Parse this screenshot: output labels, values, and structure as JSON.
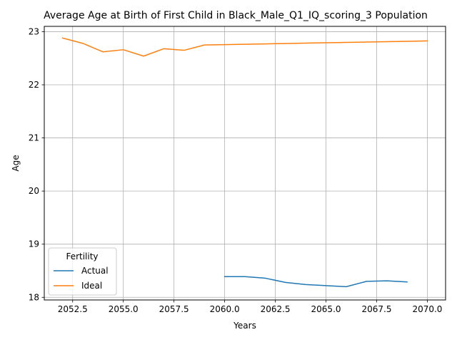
{
  "chart_data": {
    "type": "line",
    "title": "Average Age at Birth of First Child in Black_Male_Q1_IQ_scoring_3 Population",
    "xlabel": "Years",
    "ylabel": "Age",
    "xlim": [
      2051.1,
      2070.9
    ],
    "ylim": [
      17.95,
      23.1
    ],
    "xticks": [
      2052.5,
      2055.0,
      2057.5,
      2060.0,
      2062.5,
      2065.0,
      2067.5,
      2070.0
    ],
    "xtick_labels": [
      "2052.5",
      "2055.0",
      "2057.5",
      "2060.0",
      "2062.5",
      "2065.0",
      "2067.5",
      "2070.0"
    ],
    "yticks": [
      18,
      19,
      20,
      21,
      22,
      23
    ],
    "ytick_labels": [
      "18",
      "19",
      "20",
      "21",
      "22",
      "23"
    ],
    "grid": true,
    "legend": {
      "title": "Fertility",
      "placement": "lower-left"
    },
    "series": [
      {
        "name": "Actual",
        "color": "#1f77b4",
        "x": [
          2060,
          2061,
          2062,
          2063,
          2064,
          2065,
          2066,
          2067,
          2068,
          2069
        ],
        "y": [
          18.39,
          18.39,
          18.36,
          18.28,
          18.24,
          18.22,
          18.2,
          18.3,
          18.31,
          18.29
        ]
      },
      {
        "name": "Ideal",
        "color": "#ff7f0e",
        "x": [
          2052,
          2053,
          2054,
          2055,
          2056,
          2057,
          2058,
          2059,
          2060,
          2061,
          2062,
          2063,
          2064,
          2065,
          2066,
          2067,
          2068,
          2069,
          2070
        ],
        "y": [
          22.88,
          22.78,
          22.62,
          22.66,
          22.54,
          22.68,
          22.65,
          22.75,
          22.756,
          22.763,
          22.77,
          22.777,
          22.784,
          22.791,
          22.798,
          22.805,
          22.812,
          22.819,
          22.826
        ]
      }
    ]
  }
}
